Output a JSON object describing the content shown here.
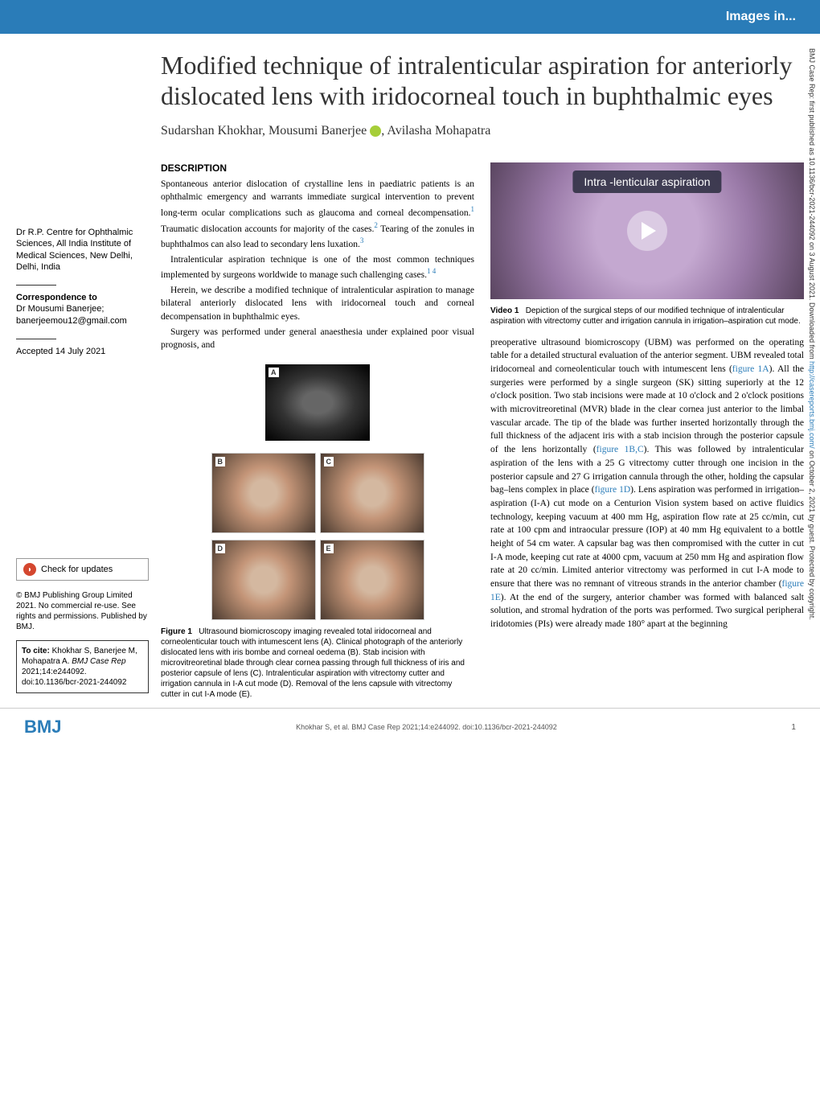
{
  "banner": {
    "label": "Images in..."
  },
  "article": {
    "title": "Modified technique of intralenticular aspiration for anteriorly dislocated lens with iridocorneal touch in buphthalmic eyes",
    "authors": "Sudarshan Khokhar, Mousumi Banerjee",
    "authors_suffix": ", Avilasha Mohapatra"
  },
  "sidebar": {
    "affiliation": "Dr R.P. Centre for Ophthalmic Sciences, All India Institute of Medical Sciences, New Delhi, Delhi, India",
    "correspondence_heading": "Correspondence to",
    "correspondence_text": "Dr Mousumi Banerjee;",
    "correspondence_email": "banerjeemou12@gmail.com",
    "accepted": "Accepted 14 July 2021",
    "check_updates": "Check for updates",
    "copyright": "© BMJ Publishing Group Limited 2021. No commercial re-use. See rights and permissions. Published by BMJ.",
    "cite_label": "To cite:",
    "cite_text": " Khokhar S, Banerjee M, Mohapatra A. ",
    "cite_journal": "BMJ Case Rep",
    "cite_details": " 2021;14:e244092. doi:10.1136/bcr-2021-244092"
  },
  "section": {
    "heading": "DESCRIPTION",
    "para1": "Spontaneous anterior dislocation of crystalline lens in paediatric patients is an ophthalmic emergency and warrants immediate surgical intervention to prevent long-term ocular complications such as glaucoma and corneal decompensation.",
    "para1_suffix": " Traumatic dislocation accounts for majority of the cases.",
    "para1_suffix2": " Tearing of the zonules in buphthalmos can also lead to secondary lens luxation.",
    "para2": "Intralenticular aspiration technique is one of the most common techniques implemented by surgeons worldwide to manage such challenging cases.",
    "para3": "Herein, we describe a modified technique of intralenticular aspiration to manage bilateral anteriorly dislocated lens with iridocorneal touch and corneal decompensation in buphthalmic eyes.",
    "para4": "Surgery was performed under general anaesthesia under explained poor visual prognosis, and",
    "para5": "preoperative ultrasound biomicroscopy (UBM) was performed on the operating table for a detailed structural evaluation of the anterior segment. UBM revealed total iridocorneal and corneolenticular touch with intumescent lens (",
    "para5_mid": "). All the surgeries were performed by a single surgeon (SK) sitting superiorly at the 12 o'clock position. Two stab incisions were made at 10 o'clock and 2 o'clock positions with microvitreoretinal (MVR) blade in the clear cornea just anterior to the limbal vascular arcade. The tip of the blade was further inserted horizontally through the full thickness of the adjacent iris with a stab incision through the posterior capsule of the lens horizontally (",
    "para5_mid2": "). This was followed by intralenticular aspiration of the lens with a 25 G vitrectomy cutter through one incision in the posterior capsule and 27 G irrigation cannula through the other, holding the capsular bag–lens complex in place (",
    "para5_mid3": "). Lens aspiration was performed in irrigation–aspiration (I-A) cut mode on a Centurion Vision system based on active fluidics technology, keeping vacuum at 400 mm Hg, aspiration flow rate at 25 cc/min, cut rate at 100 cpm and intraocular pressure (IOP) at 40 mm Hg equivalent to a bottle height of 54 cm water. A capsular bag was then compromised with the cutter in cut I-A mode, keeping cut rate at 4000 cpm, vacuum at 250 mm Hg and aspiration flow rate at 20 cc/min. Limited anterior vitrectomy was performed in cut I-A mode to ensure that there was no remnant of vitreous strands in the anterior chamber (",
    "para5_end": "). At the end of the surgery, anterior chamber was formed with balanced salt solution, and stromal hydration of the ports was performed. Two surgical peripheral iridotomies (PIs) were already made 180° apart at the beginning"
  },
  "refs": {
    "r1": "1",
    "r2": "2",
    "r3": "3",
    "r14": "1 4"
  },
  "figlinks": {
    "f1a": "figure 1A",
    "f1bc": "figure 1B,C",
    "f1d": "figure 1D",
    "f1e": "figure 1E"
  },
  "figure1": {
    "label": "Figure 1",
    "caption": "Ultrasound biomicroscopy imaging revealed total iridocorneal and corneolenticular touch with intumescent lens (A). Clinical photograph of the anteriorly dislocated lens with iris bombe and corneal oedema (B). Stab incision with microvitreoretinal blade through clear cornea passing through full thickness of iris and posterior capsule of lens (C). Intralenticular aspiration with vitrectomy cutter and irrigation cannula in I-A cut mode (D). Removal of the lens capsule with vitrectomy cutter in cut I-A mode (E).",
    "panels": {
      "a": "A",
      "b": "B",
      "c": "C",
      "d": "D",
      "e": "E"
    }
  },
  "video1": {
    "overlay_title": "Intra -lenticular aspiration",
    "label": "Video 1",
    "caption": "Depiction of the surgical steps of our modified technique of intralenticular aspiration with vitrectomy cutter and irrigation cannula in irrigation–aspiration cut mode."
  },
  "footer": {
    "logo": "BMJ",
    "citation": "Khokhar S, et al. BMJ Case Rep 2021;14:e244092. doi:10.1136/bcr-2021-244092",
    "page": "1"
  },
  "vertical": {
    "text": "BMJ Case Rep: first published as 10.1136/bcr-2021-244092 on 3 August 2021. Downloaded from ",
    "link": "http://casereports.bmj.com/",
    "text2": " on October 2, 2021 by guest. Protected by copyright."
  }
}
